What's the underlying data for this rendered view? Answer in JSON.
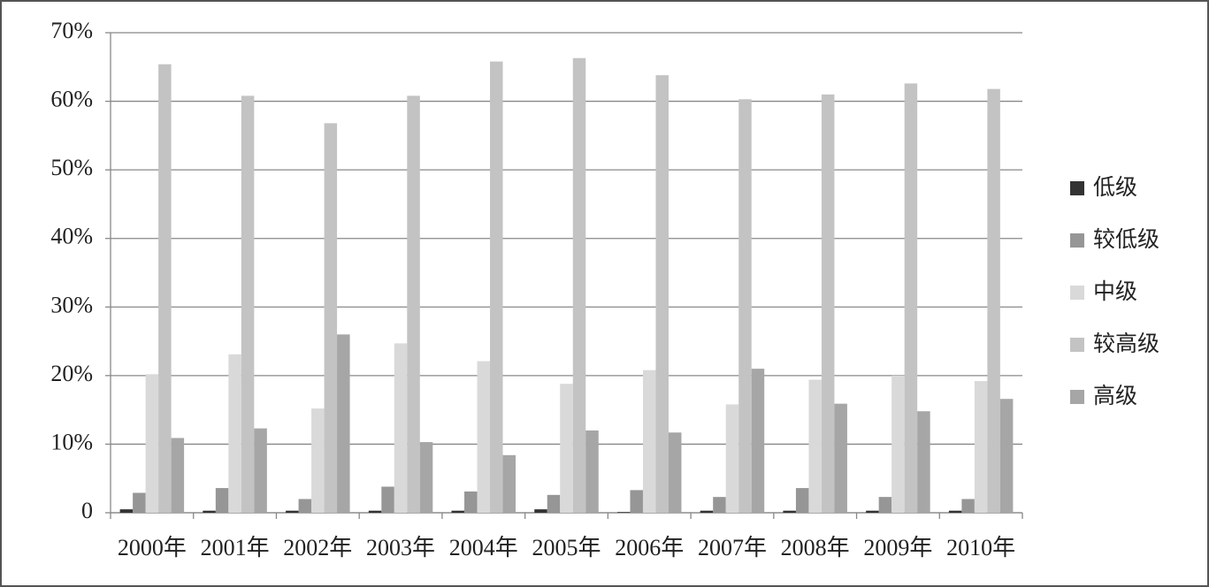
{
  "chart_data": {
    "type": "bar",
    "categories": [
      "2000年",
      "2001年",
      "2002年",
      "2003年",
      "2004年",
      "2005年",
      "2006年",
      "2007年",
      "2008年",
      "2009年",
      "2010年"
    ],
    "series": [
      {
        "name": "低级",
        "color": "#333333",
        "values": [
          0.5,
          0.3,
          0.3,
          0.3,
          0.3,
          0.5,
          0.1,
          0.3,
          0.3,
          0.3,
          0.3
        ]
      },
      {
        "name": "较低级",
        "color": "#969696",
        "values": [
          2.9,
          3.6,
          2.0,
          3.8,
          3.1,
          2.6,
          3.3,
          2.3,
          3.6,
          2.3,
          2.0
        ]
      },
      {
        "name": "中级",
        "color": "#d9d9d9",
        "values": [
          20.2,
          23.1,
          15.2,
          24.7,
          22.1,
          18.8,
          20.8,
          15.8,
          19.4,
          20.0,
          19.2
        ]
      },
      {
        "name": "较高级",
        "color": "#c3c3c3",
        "values": [
          65.4,
          60.8,
          56.8,
          60.8,
          65.8,
          66.3,
          63.8,
          60.3,
          61.0,
          62.6,
          61.8
        ]
      },
      {
        "name": "高级",
        "color": "#a6a6a6",
        "values": [
          10.9,
          12.3,
          26.0,
          10.3,
          8.4,
          12.0,
          11.7,
          21.0,
          15.9,
          14.8,
          16.6
        ]
      }
    ],
    "ylim": [
      0,
      70
    ],
    "yticks": [
      0,
      {
        "value": 10,
        "label": "10%"
      },
      {
        "value": 20,
        "label": "20%"
      },
      {
        "value": 30,
        "label": "30%"
      },
      {
        "value": 40,
        "label": "40%"
      },
      {
        "value": 50,
        "label": "50%"
      },
      {
        "value": 60,
        "label": "60%"
      },
      {
        "value": 70,
        "label": "70%"
      }
    ],
    "grid": true,
    "legend": "right"
  }
}
